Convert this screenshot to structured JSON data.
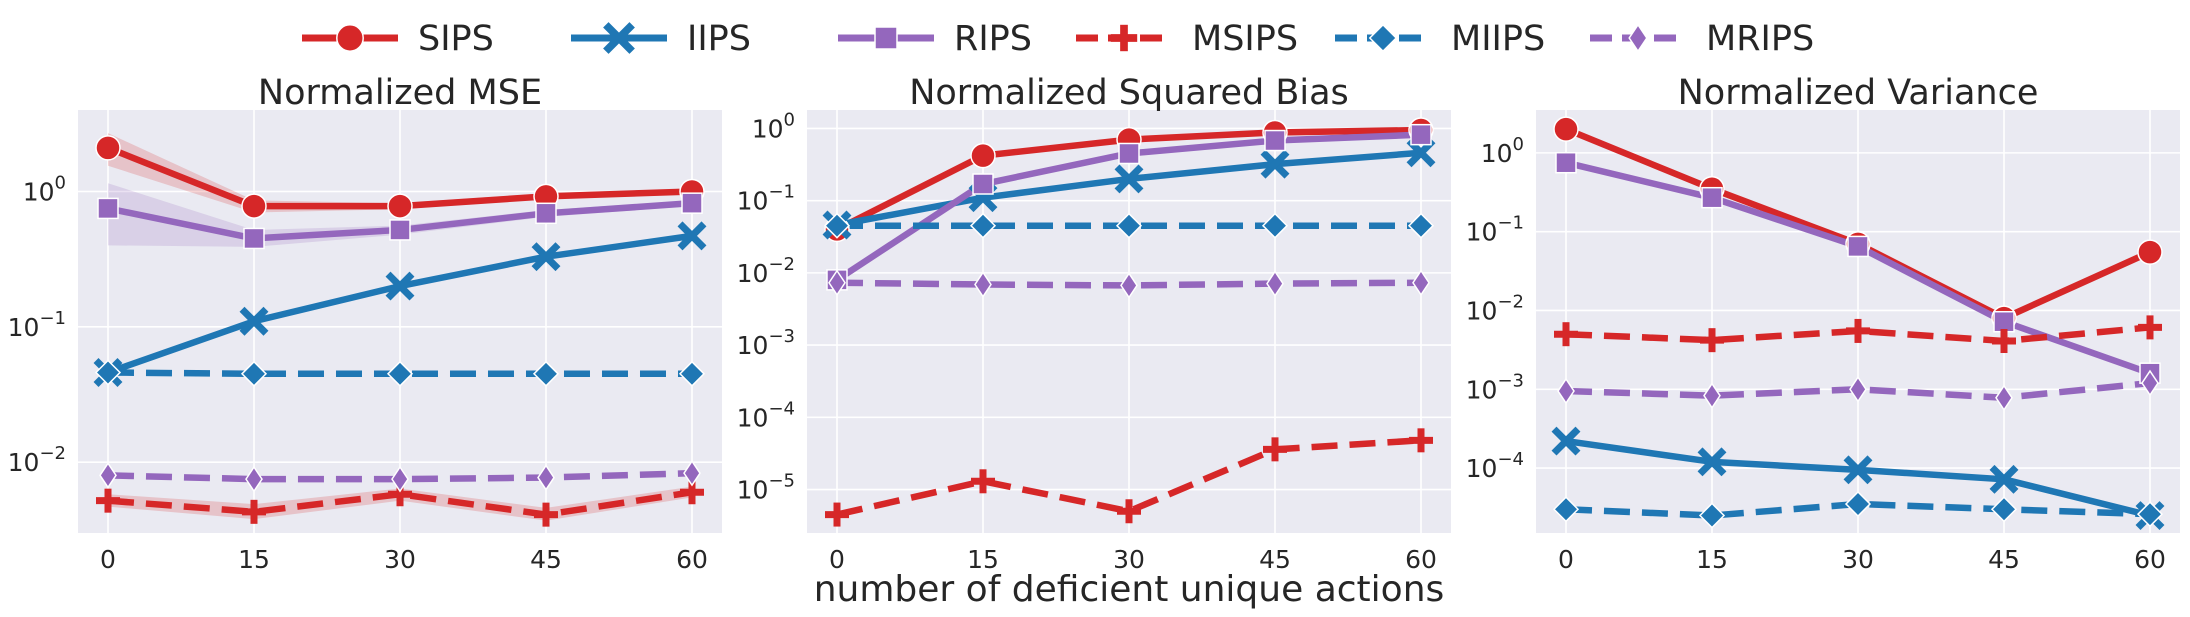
{
  "legend": [
    {
      "name": "SIPS",
      "color": "#d62728",
      "marker": "circle",
      "dash": "solid"
    },
    {
      "name": "IIPS",
      "color": "#1f77b4",
      "marker": "x",
      "dash": "solid"
    },
    {
      "name": "RIPS",
      "color": "#9467bd",
      "marker": "square",
      "dash": "solid"
    },
    {
      "name": "MSIPS",
      "color": "#d62728",
      "marker": "plus",
      "dash": "dashed"
    },
    {
      "name": "MIIPS",
      "color": "#1f77b4",
      "marker": "diamond",
      "dash": "dashed"
    },
    {
      "name": "MRIPS",
      "color": "#9467bd",
      "marker": "thin-diamond",
      "dash": "dashed"
    }
  ],
  "xlabel": "number of deficient unique actions",
  "chart_data": [
    {
      "type": "line",
      "title": "Normalized MSE",
      "yscale": "log",
      "ylim": [
        0.003,
        4.0
      ],
      "yticks": [
        0.01,
        0.1,
        1
      ],
      "ytick_labels": [
        {
          "b": "10",
          "e": "−2"
        },
        {
          "b": "10",
          "e": "−1"
        },
        {
          "b": "10",
          "e": "0"
        }
      ],
      "x": [
        0,
        15,
        30,
        45,
        60
      ],
      "xticks": [
        "0",
        "15",
        "30",
        "45",
        "60"
      ],
      "grid": true,
      "series": [
        {
          "name": "SIPS",
          "values": [
            2.1,
            0.78,
            0.78,
            0.92,
            1.0
          ],
          "band_low": [
            1.55,
            0.7,
            0.74,
            0.88,
            0.95
          ],
          "band_high": [
            2.7,
            0.86,
            0.82,
            0.97,
            1.05
          ]
        },
        {
          "name": "IIPS",
          "values": [
            0.046,
            0.11,
            0.2,
            0.33,
            0.47
          ]
        },
        {
          "name": "RIPS",
          "values": [
            0.75,
            0.45,
            0.52,
            0.69,
            0.82
          ],
          "band_low": [
            0.4,
            0.39,
            0.48,
            0.65,
            0.78
          ],
          "band_high": [
            1.15,
            0.52,
            0.56,
            0.73,
            0.86
          ]
        },
        {
          "name": "MSIPS",
          "values": [
            0.0052,
            0.0043,
            0.0058,
            0.0041,
            0.006
          ],
          "band_low": [
            0.0047,
            0.0038,
            0.0052,
            0.0037,
            0.0055
          ],
          "band_high": [
            0.0058,
            0.0049,
            0.0064,
            0.0046,
            0.0066
          ]
        },
        {
          "name": "MIIPS",
          "values": [
            0.046,
            0.045,
            0.045,
            0.045,
            0.045
          ]
        },
        {
          "name": "MRIPS",
          "values": [
            0.008,
            0.0075,
            0.0075,
            0.0077,
            0.0083
          ]
        }
      ]
    },
    {
      "type": "line",
      "title": "Normalized Squared Bias",
      "yscale": "log",
      "ylim": [
        2.5e-06,
        1.8
      ],
      "yticks": [
        1e-05,
        0.0001,
        0.001,
        0.01,
        0.1,
        1
      ],
      "ytick_labels": [
        {
          "b": "10",
          "e": "−5"
        },
        {
          "b": "10",
          "e": "−4"
        },
        {
          "b": "10",
          "e": "−3"
        },
        {
          "b": "10",
          "e": "−2"
        },
        {
          "b": "10",
          "e": "−1"
        },
        {
          "b": "10",
          "e": "0"
        }
      ],
      "x": [
        0,
        15,
        30,
        45,
        60
      ],
      "xticks": [
        "0",
        "15",
        "30",
        "45",
        "60"
      ],
      "grid": true,
      "series": [
        {
          "name": "SIPS",
          "values": [
            0.04,
            0.42,
            0.7,
            0.88,
            0.95
          ]
        },
        {
          "name": "IIPS",
          "values": [
            0.046,
            0.11,
            0.2,
            0.32,
            0.46
          ]
        },
        {
          "name": "RIPS",
          "values": [
            0.008,
            0.17,
            0.45,
            0.68,
            0.82
          ]
        },
        {
          "name": "MSIPS",
          "values": [
            4.5e-06,
            1.3e-05,
            5e-06,
            3.6e-05,
            4.8e-05
          ]
        },
        {
          "name": "MIIPS",
          "values": [
            0.045,
            0.045,
            0.045,
            0.045,
            0.045
          ]
        },
        {
          "name": "MRIPS",
          "values": [
            0.0073,
            0.0069,
            0.0067,
            0.0071,
            0.0073
          ]
        }
      ]
    },
    {
      "type": "line",
      "title": "Normalized Variance",
      "yscale": "log",
      "ylim": [
        1.5e-05,
        3.5
      ],
      "yticks": [
        0.0001,
        0.001,
        0.01,
        0.1,
        1
      ],
      "ytick_labels": [
        {
          "b": "10",
          "e": "−4"
        },
        {
          "b": "10",
          "e": "−3"
        },
        {
          "b": "10",
          "e": "−2"
        },
        {
          "b": "10",
          "e": "−1"
        },
        {
          "b": "10",
          "e": "0"
        }
      ],
      "x": [
        0,
        15,
        30,
        45,
        60
      ],
      "xticks": [
        "0",
        "15",
        "30",
        "45",
        "60"
      ],
      "grid": true,
      "series": [
        {
          "name": "SIPS",
          "values": [
            2.0,
            0.35,
            0.07,
            0.008,
            0.055
          ]
        },
        {
          "name": "IIPS",
          "values": [
            0.00022,
            0.00012,
            9.5e-05,
            7.2e-05,
            2.5e-05
          ]
        },
        {
          "name": "RIPS",
          "values": [
            0.75,
            0.27,
            0.065,
            0.0072,
            0.0016
          ]
        },
        {
          "name": "MSIPS",
          "values": [
            0.005,
            0.0042,
            0.0055,
            0.0041,
            0.0061
          ]
        },
        {
          "name": "MIIPS",
          "values": [
            3e-05,
            2.5e-05,
            3.5e-05,
            3e-05,
            2.6e-05
          ]
        },
        {
          "name": "MRIPS",
          "values": [
            0.00095,
            0.00083,
            0.001,
            0.00078,
            0.0012
          ]
        }
      ]
    }
  ]
}
